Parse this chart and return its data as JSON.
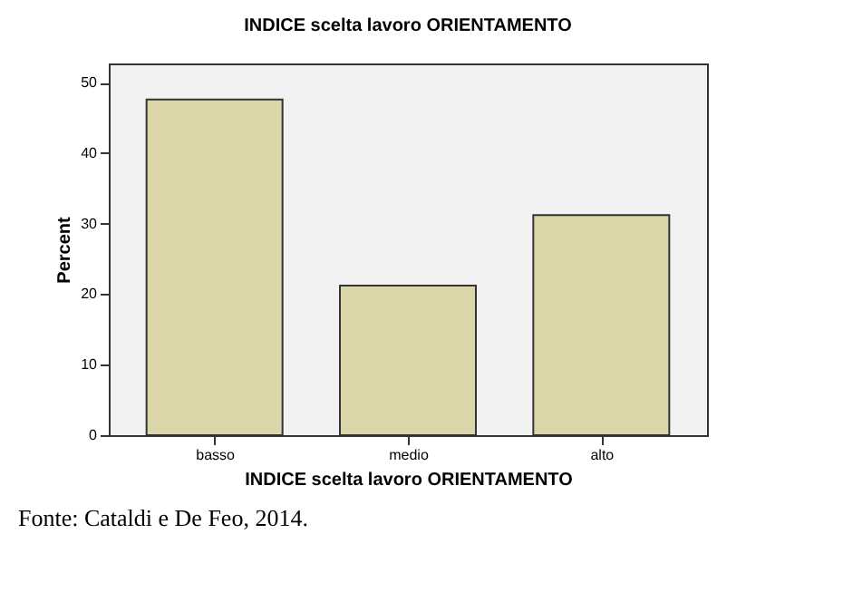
{
  "chart_data": {
    "type": "bar",
    "title": "INDICE scelta lavoro ORIENTAMENTO",
    "xlabel": "INDICE scelta lavoro ORIENTAMENTO",
    "ylabel": "Percent",
    "categories": [
      "basso",
      "medio",
      "alto"
    ],
    "values": [
      47.6,
      21.2,
      31.2
    ],
    "color": "#dad6aa",
    "ylim": [
      0,
      52.7
    ],
    "yticks": [
      0,
      10,
      20,
      30,
      40,
      50
    ],
    "grid": false,
    "annotations": [
      "Fonte: Cataldi e De Feo, 2014."
    ]
  }
}
